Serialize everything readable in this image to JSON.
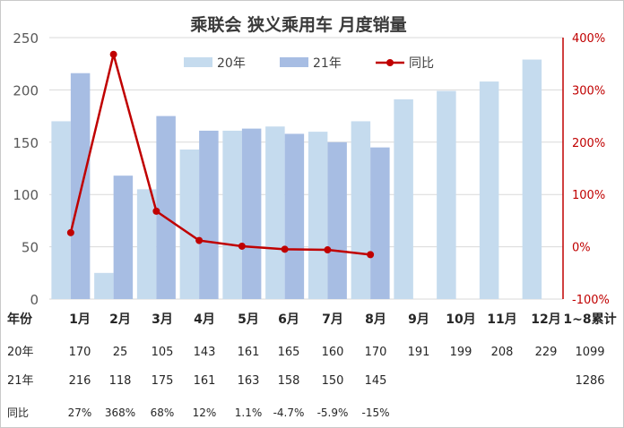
{
  "chart_data": {
    "type": "bar",
    "title": "乘联会 狭义乘用车 月度销量",
    "categories": [
      "1月",
      "2月",
      "3月",
      "4月",
      "5月",
      "6月",
      "7月",
      "8月",
      "9月",
      "10月",
      "11月",
      "12月"
    ],
    "series": [
      {
        "name": "20年",
        "type": "bar",
        "axis": "left",
        "color": "#c5dbee",
        "values": [
          170,
          25,
          105,
          143,
          161,
          165,
          160,
          170,
          191,
          199,
          208,
          229
        ]
      },
      {
        "name": "21年",
        "type": "bar",
        "axis": "left",
        "color": "#a7bde3",
        "values": [
          216,
          118,
          175,
          161,
          163,
          158,
          150,
          145,
          null,
          null,
          null,
          null
        ]
      },
      {
        "name": "同比",
        "type": "line",
        "axis": "right",
        "color": "#c00000",
        "values": [
          27,
          368,
          68,
          12,
          1.1,
          -4.7,
          -5.9,
          -15,
          null,
          null,
          null,
          null
        ]
      }
    ],
    "ylim": [
      0,
      250
    ],
    "yticks": [
      "0",
      "50",
      "100",
      "150",
      "200",
      "250"
    ],
    "y2lim": [
      -100,
      400
    ],
    "y2ticks": [
      "-100%",
      "0%",
      "100%",
      "200%",
      "300%",
      "400%"
    ],
    "legend_position": "top-center",
    "grid": "horizontal"
  },
  "table": {
    "header": [
      "年份",
      "1月",
      "2月",
      "3月",
      "4月",
      "5月",
      "6月",
      "7月",
      "8月",
      "9月",
      "10月",
      "11月",
      "12月",
      "1~8累计"
    ],
    "rows": [
      {
        "label": "20年",
        "cells": [
          "170",
          "25",
          "105",
          "143",
          "161",
          "165",
          "160",
          "170",
          "191",
          "199",
          "208",
          "229",
          "1099"
        ]
      },
      {
        "label": "21年",
        "cells": [
          "216",
          "118",
          "175",
          "161",
          "163",
          "158",
          "150",
          "145",
          "",
          "",
          "",
          "",
          "1286"
        ]
      },
      {
        "label": "同比",
        "cells": [
          "27%",
          "368%",
          "68%",
          "12%",
          "1.1%",
          "-4.7%",
          "-5.9%",
          "-15%",
          "",
          "",
          "",
          "",
          ""
        ]
      }
    ]
  }
}
